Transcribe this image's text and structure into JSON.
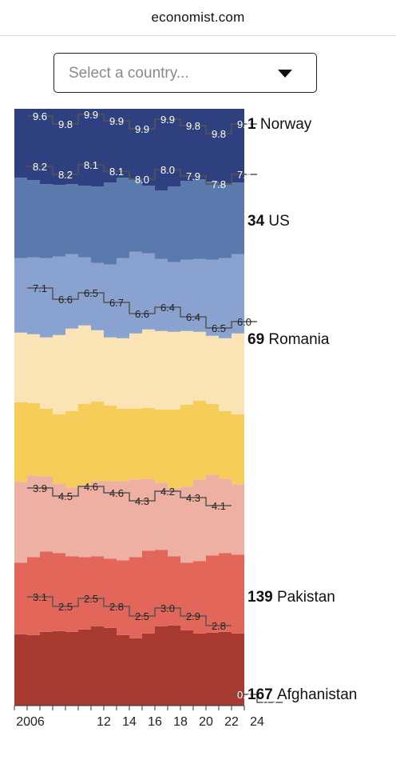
{
  "site": {
    "domain": "economist.com"
  },
  "country_select": {
    "placeholder": "Select a country..."
  },
  "chart_data": {
    "type": "area",
    "title": "",
    "xlabel": "",
    "ylabel": "",
    "x_ticks": [
      "2006",
      "12",
      "14",
      "16",
      "18",
      "20",
      "22",
      "24"
    ],
    "years": [
      2006,
      2007,
      2008,
      2010,
      2011,
      2012,
      2013,
      2014,
      2015,
      2016,
      2017,
      2018,
      2019,
      2020,
      2021,
      2022,
      2023,
      2024
    ],
    "band_colors": [
      "#a93a30",
      "#e2665a",
      "#eeb0a2",
      "#f6cd58",
      "#fae4b6",
      "#8aa2cf",
      "#5a79ac",
      "#2f4080"
    ],
    "highlight_rows": [
      {
        "name": "Norway",
        "rank": "1",
        "color": "#2f4080",
        "text_color": "light",
        "labels": [
          {
            "year": 2006,
            "text": "9.6"
          },
          {
            "year": 2008,
            "text": "9.8"
          },
          {
            "year": 2010,
            "text": "9.9"
          },
          {
            "year": 2012,
            "text": "9.9"
          },
          {
            "year": 2014,
            "text": "9.9"
          },
          {
            "year": 2016,
            "text": "9.9"
          },
          {
            "year": 2018,
            "text": "9.8"
          },
          {
            "year": 2020,
            "text": "9.8"
          },
          {
            "year": 2022,
            "text": "9.8"
          }
        ]
      },
      {
        "name": "US",
        "rank": "34",
        "color": "#5a79ac",
        "text_color": "light",
        "labels": [
          {
            "year": 2006,
            "text": "8.2"
          },
          {
            "year": 2008,
            "text": "8.2"
          },
          {
            "year": 2010,
            "text": "8.1"
          },
          {
            "year": 2012,
            "text": "8.1"
          },
          {
            "year": 2014,
            "text": "8.0"
          },
          {
            "year": 2016,
            "text": "8.0"
          },
          {
            "year": 2018,
            "text": "7.9"
          },
          {
            "year": 2020,
            "text": "7.8"
          },
          {
            "year": 2022,
            "text": "7.8"
          }
        ]
      },
      {
        "name": "Romania",
        "rank": "69",
        "color": "#8aa2cf",
        "text_color": "dark",
        "labels": [
          {
            "year": 2006,
            "text": "7.1"
          },
          {
            "year": 2008,
            "text": "6.6"
          },
          {
            "year": 2010,
            "text": "6.5"
          },
          {
            "year": 2012,
            "text": "6.7"
          },
          {
            "year": 2014,
            "text": "6.6"
          },
          {
            "year": 2016,
            "text": "6.4"
          },
          {
            "year": 2018,
            "text": "6.4"
          },
          {
            "year": 2020,
            "text": "6.5"
          },
          {
            "year": 2022,
            "text": "6.0"
          }
        ]
      },
      {
        "name": "",
        "rank": "",
        "color": "#f6cd58",
        "text_color": "dark",
        "labels": [
          {
            "year": 2006,
            "text": "3.9"
          },
          {
            "year": 2008,
            "text": "4.5"
          },
          {
            "year": 2010,
            "text": "4.6"
          },
          {
            "year": 2012,
            "text": "4.6"
          },
          {
            "year": 2014,
            "text": "4.3"
          },
          {
            "year": 2016,
            "text": "4.2"
          },
          {
            "year": 2018,
            "text": "4.3"
          },
          {
            "year": 2020,
            "text": "4.1"
          }
        ]
      },
      {
        "name": "Pakistan",
        "rank": "139",
        "color": "#e2665a",
        "text_color": "dark",
        "labels": [
          {
            "year": 2006,
            "text": "3.1"
          },
          {
            "year": 2008,
            "text": "2.5"
          },
          {
            "year": 2010,
            "text": "2.5"
          },
          {
            "year": 2012,
            "text": "2.8"
          },
          {
            "year": 2014,
            "text": "2.5"
          },
          {
            "year": 2016,
            "text": "3.0"
          },
          {
            "year": 2018,
            "text": "2.9"
          },
          {
            "year": 2020,
            "text": "2.8"
          }
        ]
      },
      {
        "name": "Afghanistan",
        "rank": "167",
        "color": "#a93a30",
        "text_color": "light",
        "labels": [
          {
            "year": 2022,
            "text": "0.3"
          },
          {
            "year": 2024,
            "text": "0.3"
          }
        ]
      }
    ]
  }
}
